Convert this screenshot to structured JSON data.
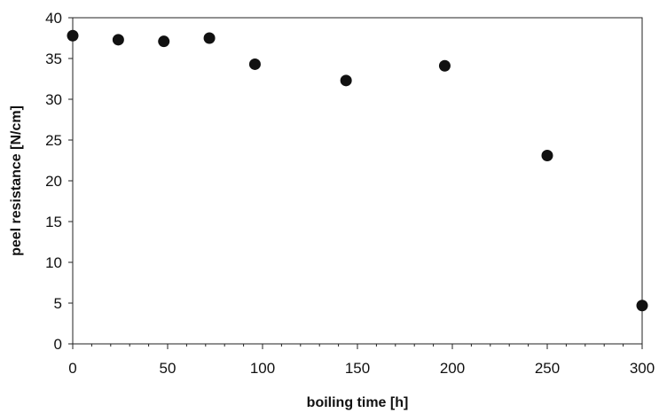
{
  "chart_data": {
    "type": "scatter",
    "title": "",
    "xlabel": "boiling time [h]",
    "ylabel": "peel resistance [N/cm]",
    "xlim": [
      0,
      300
    ],
    "ylim": [
      0,
      40
    ],
    "x_ticks": [
      0,
      50,
      100,
      150,
      200,
      250,
      300
    ],
    "y_ticks": [
      0,
      5,
      10,
      15,
      20,
      25,
      30,
      35,
      40
    ],
    "x_tick_labels": [
      "0",
      "50",
      "100",
      "150",
      "200",
      "250",
      "300"
    ],
    "y_tick_labels": [
      "0",
      "5",
      "10",
      "15",
      "20",
      "25",
      "30",
      "35",
      "40"
    ],
    "grid": false,
    "legend": "none",
    "marker_color": "#111111",
    "series": [
      {
        "x": [
          0,
          24,
          48,
          72,
          96,
          144,
          196,
          250,
          300
        ],
        "y": [
          37.8,
          37.3,
          37.1,
          37.5,
          34.3,
          32.3,
          34.1,
          23.1,
          4.7
        ]
      }
    ]
  }
}
